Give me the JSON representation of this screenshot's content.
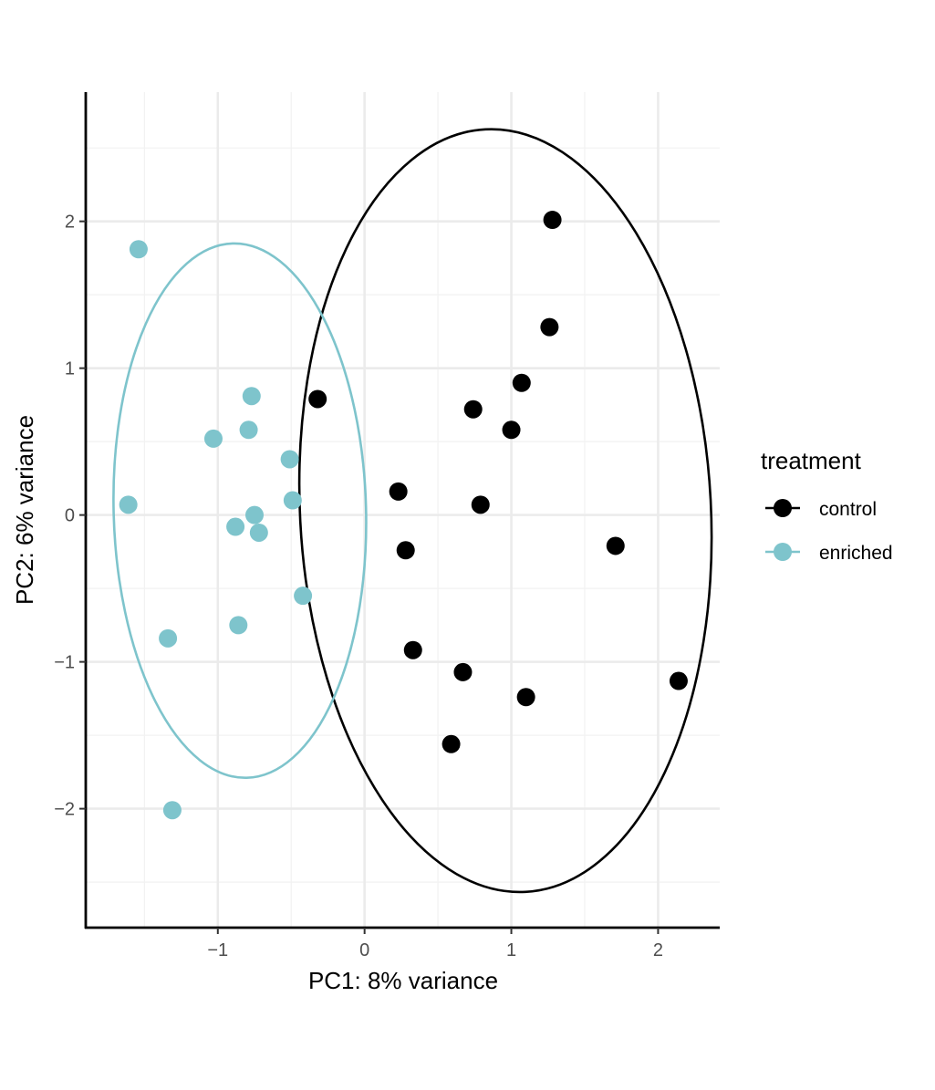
{
  "chart_data": {
    "type": "scatter",
    "title": "",
    "xlabel": "PC1: 8% variance",
    "ylabel": "PC2: 6% variance",
    "xlim": [
      -1.9,
      2.42
    ],
    "ylim": [
      -2.81,
      2.88
    ],
    "x_ticks": [
      -1,
      0,
      1,
      2
    ],
    "y_ticks": [
      -2,
      -1,
      0,
      1,
      2
    ],
    "x_tick_labels": [
      "−1",
      "0",
      "1",
      "2"
    ],
    "y_tick_labels": [
      "−2",
      "−1",
      "0",
      "1",
      "2"
    ],
    "grid": true,
    "legend": {
      "title": "treatment",
      "position": "right"
    },
    "series": [
      {
        "name": "control",
        "color": "#000000",
        "ellipse": {
          "cx": 0.96,
          "cy": 0.03,
          "rx": 1.4,
          "ry": 2.6,
          "angle_deg": -3
        },
        "points": [
          [
            1.28,
            2.01
          ],
          [
            1.26,
            1.28
          ],
          [
            1.07,
            0.9
          ],
          [
            0.74,
            0.72
          ],
          [
            1.0,
            0.58
          ],
          [
            -0.32,
            0.79
          ],
          [
            0.23,
            0.16
          ],
          [
            0.79,
            0.07
          ],
          [
            0.28,
            -0.24
          ],
          [
            1.71,
            -0.21
          ],
          [
            0.33,
            -0.92
          ],
          [
            0.67,
            -1.07
          ],
          [
            2.14,
            -1.13
          ],
          [
            1.1,
            -1.24
          ],
          [
            0.59,
            -1.56
          ]
        ]
      },
      {
        "name": "enriched",
        "color": "#7ec4cc",
        "ellipse": {
          "cx": -0.85,
          "cy": 0.03,
          "rx": 0.86,
          "ry": 1.82,
          "angle_deg": -1.5
        },
        "points": [
          [
            -1.54,
            1.81
          ],
          [
            -0.77,
            0.81
          ],
          [
            -0.79,
            0.58
          ],
          [
            -1.03,
            0.52
          ],
          [
            -0.51,
            0.38
          ],
          [
            -1.61,
            0.07
          ],
          [
            -0.49,
            0.1
          ],
          [
            -0.75,
            0.0
          ],
          [
            -0.88,
            -0.08
          ],
          [
            -0.72,
            -0.12
          ],
          [
            -0.42,
            -0.55
          ],
          [
            -0.86,
            -0.75
          ],
          [
            -1.34,
            -0.84
          ],
          [
            -1.31,
            -2.01
          ]
        ]
      }
    ]
  }
}
